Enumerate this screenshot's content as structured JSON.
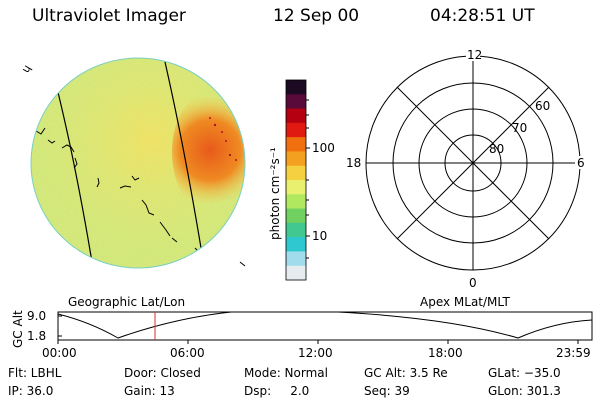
{
  "header": {
    "instrument": "Ultraviolet Imager",
    "date": "12 Sep 00",
    "time": "04:28:51 UT"
  },
  "imager": {
    "corner_mark": "ɥ",
    "bright_color": "#e8641c",
    "haze_color": "#f2e060",
    "bg_color": "#cfe67a"
  },
  "colorbar": {
    "unit_label": "photon cm⁻²s⁻¹",
    "ticks": [
      "100",
      "10"
    ],
    "colors": [
      "#1b0a22",
      "#5a0a3a",
      "#b40010",
      "#e01a10",
      "#f07010",
      "#f3a020",
      "#f5d040",
      "#e9f070",
      "#b0e860",
      "#70d060",
      "#40c890",
      "#30c8d0",
      "#a0dcec",
      "#e4ecf0"
    ]
  },
  "polar": {
    "mlt_labels": {
      "top": "12",
      "bottom": "0",
      "left": "18",
      "right": "6"
    },
    "lat_labels": [
      "60",
      "70",
      "80"
    ]
  },
  "altitude": {
    "left_title": "Geographic Lat/Lon",
    "right_title": "Apex MLat/MLT",
    "ylabel": "GC Alt",
    "yticks": [
      "9.0",
      "1.8"
    ],
    "xticks": [
      "00:00",
      "06:00",
      "12:00",
      "18:00",
      "23:59"
    ],
    "marker_color": "#d03030"
  },
  "info": {
    "row1": [
      "Flt: LBHL",
      "Door: Closed",
      "Mode: Normal",
      "GC Alt: 3.5 Re",
      "GLat: −35.0"
    ],
    "row2": [
      "IP: 36.0",
      "Gain: 13",
      "Dsp:     2.0",
      "Seq: 39",
      "GLon: 301.3"
    ]
  }
}
